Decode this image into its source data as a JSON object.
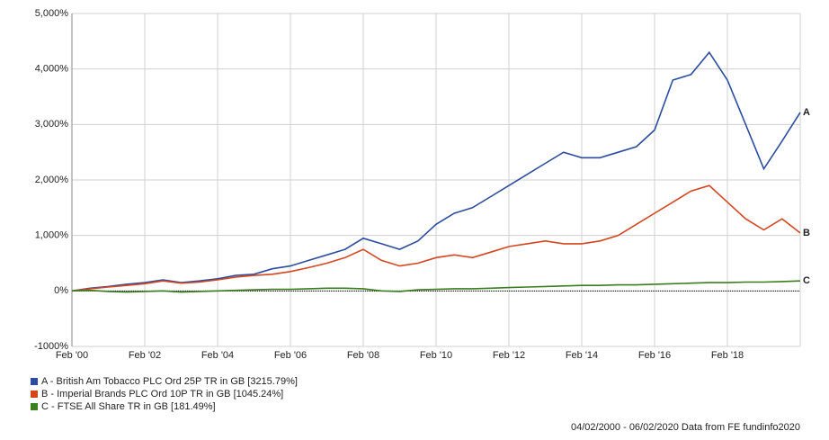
{
  "chart_data": {
    "type": "line",
    "x": [
      2000.1,
      2000.6,
      2001.1,
      2001.6,
      2002.1,
      2002.6,
      2003.1,
      2003.6,
      2004.1,
      2004.6,
      2005.1,
      2005.6,
      2006.1,
      2006.6,
      2007.1,
      2007.6,
      2008.1,
      2008.6,
      2009.1,
      2009.6,
      2010.1,
      2010.6,
      2011.1,
      2011.6,
      2012.1,
      2012.6,
      2013.1,
      2013.6,
      2014.1,
      2014.6,
      2015.1,
      2015.6,
      2016.1,
      2016.6,
      2017.1,
      2017.6,
      2018.1,
      2018.6,
      2019.1,
      2019.6,
      2020.1
    ],
    "series": [
      {
        "name": "A - British Am Tobacco PLC Ord 25P TR in GB [3215.79%]",
        "end_label": "A",
        "color": "#2c4d9e",
        "values": [
          0,
          50,
          80,
          120,
          150,
          200,
          150,
          180,
          220,
          280,
          300,
          400,
          450,
          550,
          650,
          750,
          950,
          850,
          750,
          900,
          1200,
          1400,
          1500,
          1700,
          1900,
          2100,
          2300,
          2500,
          2400,
          2400,
          2500,
          2600,
          2900,
          3800,
          3900,
          4300,
          3800,
          3000,
          2200,
          2700,
          3216
        ]
      },
      {
        "name": "B - Imperial Brands PLC Ord 10P TR in GB [1045.24%]",
        "end_label": "B",
        "color": "#d4461f",
        "values": [
          0,
          40,
          70,
          100,
          130,
          180,
          140,
          160,
          200,
          250,
          280,
          300,
          350,
          420,
          500,
          600,
          750,
          550,
          450,
          500,
          600,
          650,
          600,
          700,
          800,
          850,
          900,
          850,
          850,
          900,
          1000,
          1200,
          1400,
          1600,
          1800,
          1900,
          1600,
          1300,
          1100,
          1300,
          1045
        ]
      },
      {
        "name": "C - FTSE All Share TR in GB [181.49%]",
        "end_label": "C",
        "color": "#3a7d1f",
        "values": [
          0,
          10,
          -10,
          -20,
          -10,
          0,
          -20,
          -10,
          0,
          10,
          20,
          30,
          30,
          40,
          50,
          50,
          40,
          0,
          -10,
          20,
          30,
          40,
          40,
          50,
          60,
          70,
          80,
          90,
          100,
          100,
          110,
          110,
          120,
          130,
          140,
          150,
          150,
          160,
          160,
          170,
          181
        ]
      }
    ],
    "xlim": [
      2000.1,
      2020.1
    ],
    "xticks": [
      {
        "value": 2000.1,
        "label": "Feb '00"
      },
      {
        "value": 2002.1,
        "label": "Feb '02"
      },
      {
        "value": 2004.1,
        "label": "Feb '04"
      },
      {
        "value": 2006.1,
        "label": "Feb '06"
      },
      {
        "value": 2008.1,
        "label": "Feb '08"
      },
      {
        "value": 2010.1,
        "label": "Feb '10"
      },
      {
        "value": 2012.1,
        "label": "Feb '12"
      },
      {
        "value": 2014.1,
        "label": "Feb '14"
      },
      {
        "value": 2016.1,
        "label": "Feb '16"
      },
      {
        "value": 2018.1,
        "label": "Feb '18"
      }
    ],
    "ylim": [
      -1000,
      5000
    ],
    "yticks": [
      {
        "value": 5000,
        "label": "5,000%"
      },
      {
        "value": 4000,
        "label": "4,000%"
      },
      {
        "value": 3000,
        "label": "3,000%"
      },
      {
        "value": 2000,
        "label": "2,000%"
      },
      {
        "value": 1000,
        "label": "1,000%"
      },
      {
        "value": 0,
        "label": "0%"
      },
      {
        "value": -1000,
        "label": "-1000%"
      }
    ],
    "grid": true,
    "footer": "04/02/2000 - 06/02/2020 Data from FE fundinfo2020"
  }
}
